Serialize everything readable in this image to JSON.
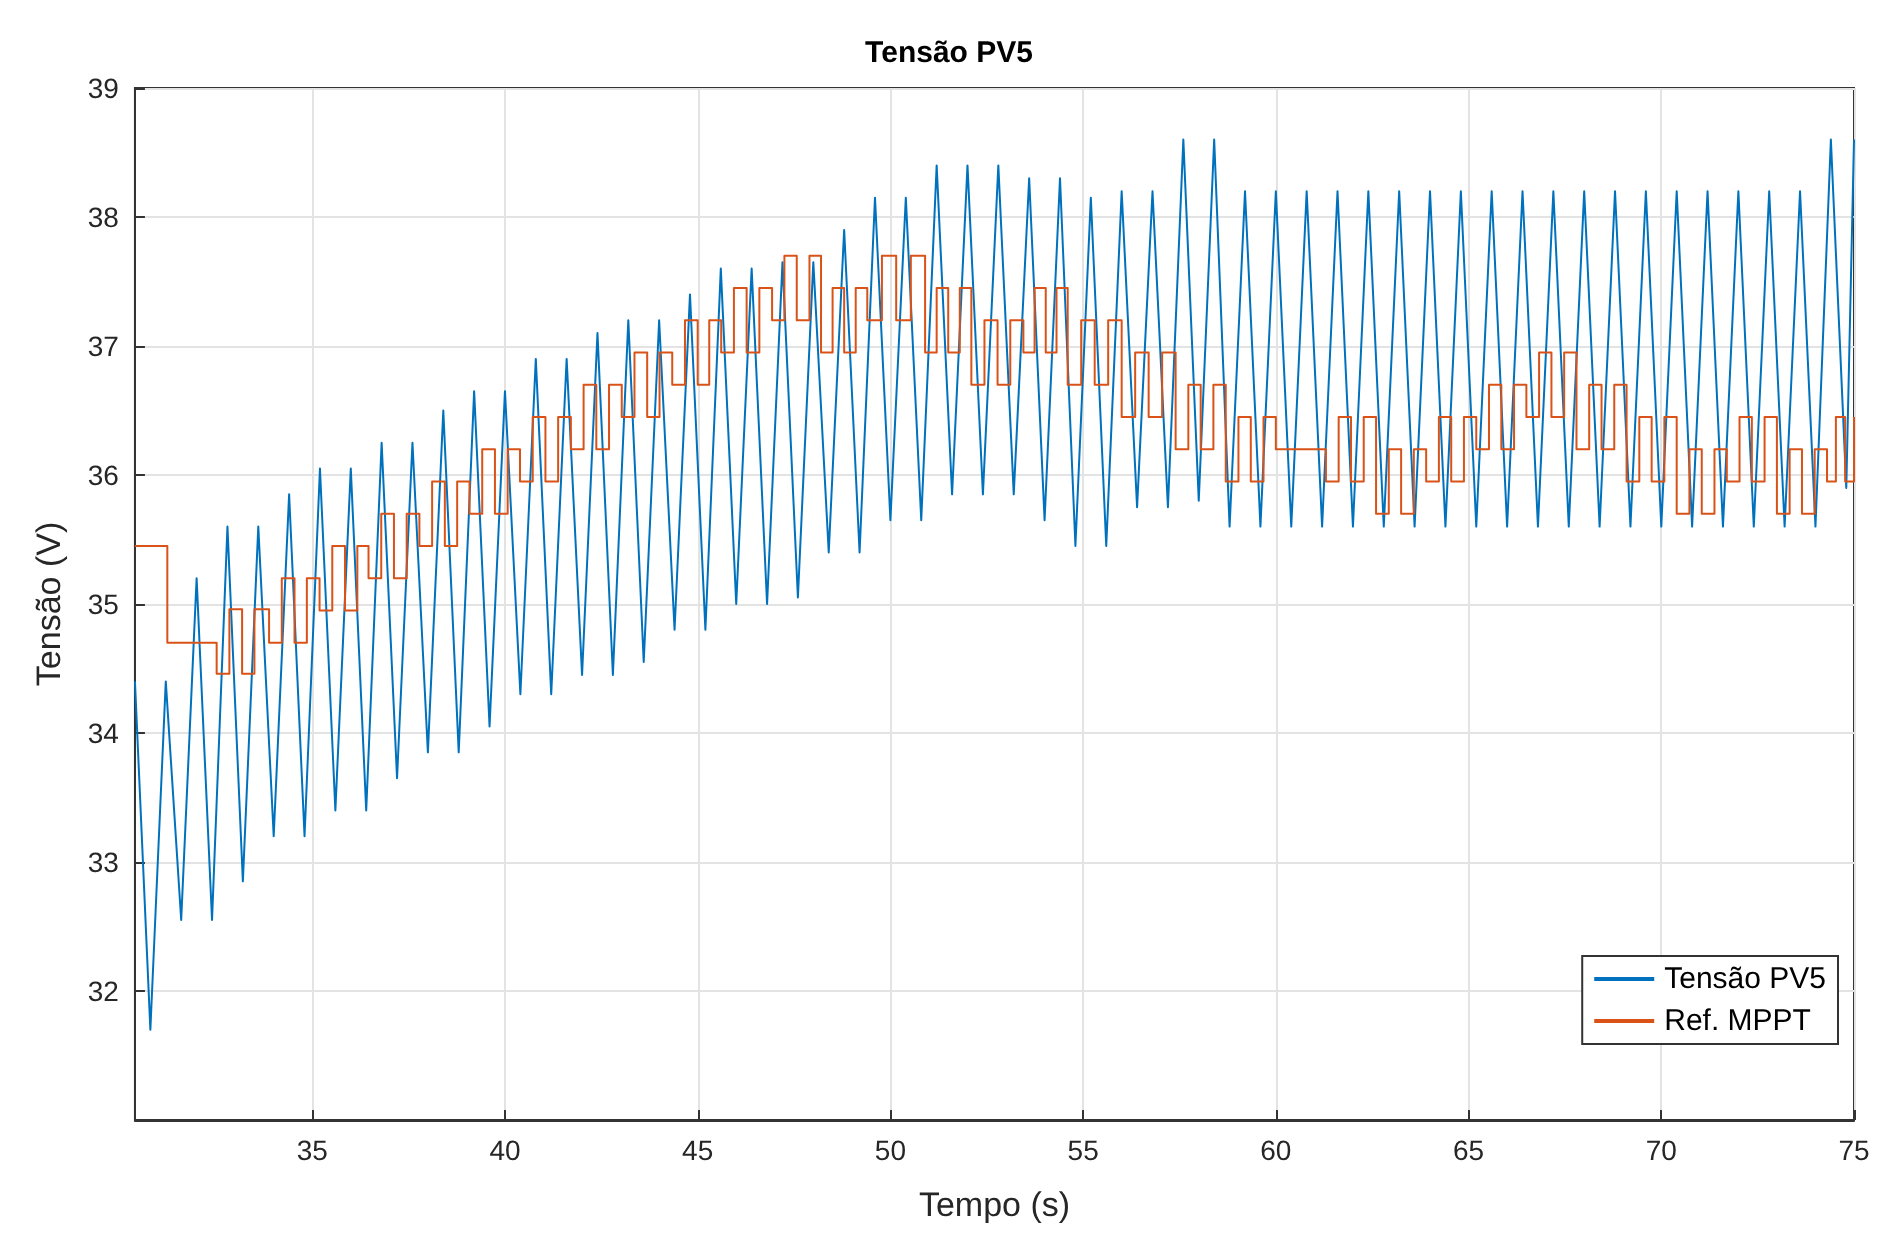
{
  "chart_data": {
    "type": "line",
    "title": "Tensão PV5",
    "xlabel": "Tempo (s)",
    "ylabel": "Tensão (V)",
    "xlim": [
      30.4,
      75
    ],
    "xticks": [
      35,
      40,
      45,
      50,
      55,
      60,
      65,
      70,
      75
    ],
    "ylim": [
      31,
      39
    ],
    "yticks": [
      32,
      33,
      34,
      35,
      36,
      37,
      38,
      39
    ],
    "grid": true,
    "legend": "bottom right",
    "marker": "none",
    "series": [
      {
        "name": "Tensão PV5",
        "color": "#0072bd",
        "x": [
          30.4,
          30.8,
          31.2,
          31.6,
          32.0,
          32.4,
          32.8,
          33.2,
          33.6,
          34.0,
          34.4,
          34.8,
          35.2,
          35.6,
          36.0,
          36.4,
          36.8,
          37.2,
          37.6,
          38.0,
          38.4,
          38.8,
          39.2,
          39.6,
          40.0,
          40.4,
          40.8,
          41.2,
          41.6,
          42.0,
          42.4,
          42.8,
          43.2,
          43.6,
          44.0,
          44.4,
          44.8,
          45.2,
          45.6,
          46.0,
          46.4,
          46.8,
          47.2,
          47.6,
          48.0,
          48.4,
          48.8,
          49.2,
          49.6,
          50.0,
          50.4,
          50.8,
          51.2,
          51.6,
          52.0,
          52.4,
          52.8,
          53.2,
          53.6,
          54.0,
          54.4,
          54.8,
          55.2,
          55.6,
          56.0,
          56.4,
          56.8,
          57.2,
          57.6,
          58.0,
          58.4,
          58.8,
          59.2,
          59.6,
          60.0,
          60.4,
          60.8,
          61.2,
          61.6,
          62.0,
          62.4,
          62.8,
          63.2,
          63.6,
          64.0,
          64.4,
          64.8,
          65.2,
          65.6,
          66.0,
          66.4,
          66.8,
          67.2,
          67.6,
          68.0,
          68.4,
          68.8,
          69.2,
          69.6,
          70.0,
          70.4,
          70.8,
          71.2,
          71.6,
          72.0,
          72.4,
          72.8,
          73.2,
          73.6,
          74.0,
          74.4,
          74.8,
          75.0
        ],
        "values": [
          34.4,
          31.7,
          34.4,
          32.55,
          35.2,
          32.55,
          35.6,
          32.85,
          35.6,
          33.2,
          35.85,
          33.2,
          36.05,
          33.4,
          36.05,
          33.4,
          36.25,
          33.65,
          36.25,
          33.85,
          36.5,
          33.85,
          36.65,
          34.05,
          36.65,
          34.3,
          36.9,
          34.3,
          36.9,
          34.45,
          37.1,
          34.45,
          37.2,
          34.55,
          37.2,
          34.8,
          37.4,
          34.8,
          37.6,
          35.0,
          37.6,
          35.0,
          37.65,
          35.05,
          37.65,
          35.4,
          37.9,
          35.4,
          38.15,
          35.65,
          38.15,
          35.65,
          38.4,
          35.85,
          38.4,
          35.85,
          38.4,
          35.85,
          38.3,
          35.65,
          38.3,
          35.45,
          38.15,
          35.45,
          38.2,
          35.75,
          38.2,
          35.75,
          38.6,
          35.8,
          38.6,
          35.6,
          38.2,
          35.6,
          38.2,
          35.6,
          38.2,
          35.6,
          38.2,
          35.6,
          38.2,
          35.6,
          38.2,
          35.6,
          38.2,
          35.6,
          38.2,
          35.6,
          38.2,
          35.6,
          38.2,
          35.6,
          38.2,
          35.6,
          38.2,
          35.6,
          38.2,
          35.6,
          38.2,
          35.6,
          38.2,
          35.6,
          38.2,
          35.6,
          38.2,
          35.6,
          38.2,
          35.6,
          38.2,
          35.6,
          38.6,
          35.9,
          38.6
        ]
      },
      {
        "name": "Ref. MPPT",
        "type": "step",
        "color": "#d95319",
        "x": [
          30.4,
          31.24,
          32.52,
          32.85,
          33.18,
          33.5,
          33.88,
          34.21,
          34.54,
          34.86,
          35.19,
          35.52,
          35.85,
          36.17,
          36.46,
          36.79,
          37.12,
          37.45,
          37.78,
          38.11,
          38.44,
          38.76,
          39.08,
          39.41,
          39.74,
          40.07,
          40.39,
          40.72,
          41.05,
          41.38,
          41.71,
          42.04,
          42.37,
          42.7,
          43.03,
          43.36,
          43.69,
          44.01,
          44.34,
          44.67,
          45.0,
          45.3,
          45.61,
          45.94,
          46.27,
          46.6,
          46.93,
          47.25,
          47.57,
          47.9,
          48.2,
          48.5,
          48.8,
          49.1,
          49.4,
          49.78,
          50.15,
          50.53,
          50.9,
          51.2,
          51.5,
          51.8,
          52.1,
          52.44,
          52.78,
          53.11,
          53.45,
          53.74,
          54.03,
          54.31,
          54.6,
          54.95,
          55.3,
          55.65,
          56.0,
          56.35,
          56.7,
          57.05,
          57.4,
          57.73,
          58.05,
          58.38,
          58.7,
          59.03,
          59.35,
          59.68,
          60.0,
          61.3,
          61.63,
          61.95,
          62.28,
          62.6,
          62.93,
          63.25,
          63.58,
          63.9,
          64.23,
          64.55,
          64.88,
          65.2,
          65.53,
          65.85,
          66.18,
          66.5,
          66.83,
          67.15,
          67.48,
          67.8,
          68.13,
          68.45,
          68.78,
          69.1,
          69.43,
          69.75,
          70.08,
          70.4,
          70.73,
          71.05,
          71.38,
          71.7,
          72.03,
          72.35,
          72.68,
          73.0,
          73.33,
          73.65,
          73.98,
          74.3,
          74.53,
          74.77,
          75.0
        ],
        "values": [
          35.45,
          34.7,
          34.46,
          34.96,
          34.46,
          34.96,
          34.7,
          35.2,
          34.7,
          35.2,
          34.95,
          35.45,
          34.95,
          35.45,
          35.2,
          35.7,
          35.2,
          35.7,
          35.45,
          35.95,
          35.45,
          35.95,
          35.7,
          36.2,
          35.7,
          36.2,
          35.95,
          36.45,
          35.95,
          36.45,
          36.2,
          36.7,
          36.2,
          36.7,
          36.45,
          36.95,
          36.45,
          36.95,
          36.7,
          37.2,
          36.7,
          37.2,
          36.95,
          37.45,
          36.95,
          37.45,
          37.2,
          37.7,
          37.2,
          37.7,
          36.95,
          37.45,
          36.95,
          37.45,
          37.2,
          37.7,
          37.2,
          37.7,
          36.95,
          37.45,
          36.95,
          37.45,
          36.7,
          37.2,
          36.7,
          37.2,
          36.95,
          37.45,
          36.95,
          37.45,
          36.7,
          37.2,
          36.7,
          37.2,
          36.45,
          36.95,
          36.45,
          36.95,
          36.2,
          36.7,
          36.2,
          36.7,
          35.95,
          36.45,
          35.95,
          36.45,
          36.2,
          35.95,
          36.45,
          35.95,
          36.45,
          35.7,
          36.2,
          35.7,
          36.2,
          35.95,
          36.45,
          35.95,
          36.45,
          36.2,
          36.7,
          36.2,
          36.7,
          36.45,
          36.95,
          36.45,
          36.95,
          36.2,
          36.7,
          36.2,
          36.7,
          35.95,
          36.45,
          35.95,
          36.45,
          35.7,
          36.2,
          35.7,
          36.2,
          35.95,
          36.45,
          35.95,
          36.45,
          35.7,
          36.2,
          35.7,
          36.2,
          35.95,
          36.45,
          35.95,
          36.45
        ]
      }
    ]
  }
}
